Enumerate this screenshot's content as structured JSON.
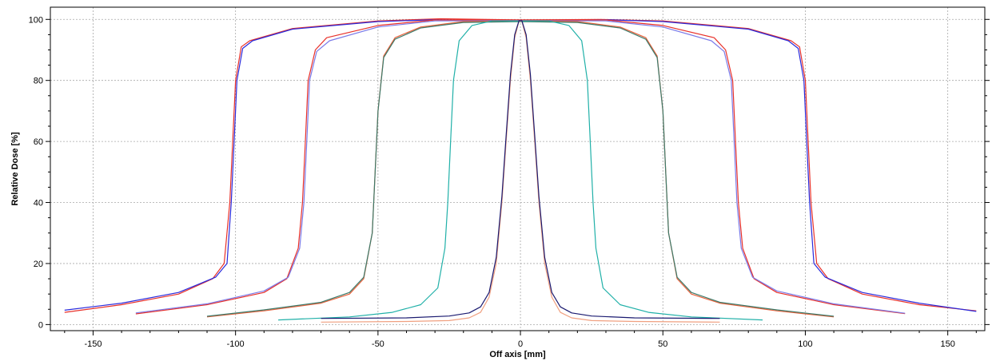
{
  "chart_data": {
    "type": "line",
    "title": "",
    "xlabel": "Off axis [mm]",
    "ylabel": "Relative Dose [%]",
    "xlim": [
      -165,
      163
    ],
    "ylim": [
      -2,
      104
    ],
    "xticks": [
      -150,
      -100,
      -50,
      0,
      50,
      100,
      150
    ],
    "yticks": [
      0,
      20,
      40,
      60,
      80,
      100
    ],
    "grid": true,
    "legend": "none",
    "series": [
      {
        "color": "#e8312a",
        "points": [
          [
            -160,
            4
          ],
          [
            -140,
            6.5
          ],
          [
            -120,
            10
          ],
          [
            -108,
            15
          ],
          [
            -104,
            20
          ],
          [
            -102,
            40
          ],
          [
            -101,
            60
          ],
          [
            -100,
            80
          ],
          [
            -98,
            91
          ],
          [
            -95,
            93
          ],
          [
            -80,
            97
          ],
          [
            -50,
            99.5
          ],
          [
            -28,
            100.2
          ],
          [
            0,
            99.8
          ],
          [
            28,
            100
          ],
          [
            50,
            99.5
          ],
          [
            80,
            97
          ],
          [
            95,
            93
          ],
          [
            98,
            91
          ],
          [
            100,
            80
          ],
          [
            101,
            60
          ],
          [
            102,
            40
          ],
          [
            104,
            20
          ],
          [
            108,
            15
          ],
          [
            120,
            10
          ],
          [
            140,
            6.5
          ],
          [
            160,
            4.5
          ]
        ]
      },
      {
        "color": "#2a2adb",
        "points": [
          [
            -160,
            4.7
          ],
          [
            -140,
            7
          ],
          [
            -120,
            10.5
          ],
          [
            -107,
            15.5
          ],
          [
            -103,
            20
          ],
          [
            -101.5,
            40
          ],
          [
            -100.5,
            60
          ],
          [
            -99.5,
            80
          ],
          [
            -97.5,
            90.5
          ],
          [
            -94,
            93
          ],
          [
            -80,
            96.8
          ],
          [
            -50,
            99.3
          ],
          [
            -30,
            99.9
          ],
          [
            0,
            99.5
          ],
          [
            30,
            99.9
          ],
          [
            50,
            99.3
          ],
          [
            80,
            96.8
          ],
          [
            94,
            93
          ],
          [
            97.5,
            90.5
          ],
          [
            99.5,
            80
          ],
          [
            100.5,
            60
          ],
          [
            101.5,
            40
          ],
          [
            103,
            20
          ],
          [
            107,
            15.5
          ],
          [
            120,
            10.5
          ],
          [
            140,
            7
          ],
          [
            160,
            4.3
          ]
        ]
      },
      {
        "color": "#e8312a",
        "points": [
          [
            -135,
            3.5
          ],
          [
            -110,
            6.5
          ],
          [
            -90,
            10.5
          ],
          [
            -82,
            15
          ],
          [
            -78,
            25
          ],
          [
            -76.5,
            40
          ],
          [
            -75.5,
            60
          ],
          [
            -74.5,
            80
          ],
          [
            -72,
            90
          ],
          [
            -68,
            94
          ],
          [
            -50,
            98
          ],
          [
            -30,
            99.8
          ],
          [
            0,
            99.8
          ],
          [
            30,
            99.8
          ],
          [
            50,
            98
          ],
          [
            68,
            94
          ],
          [
            72,
            90
          ],
          [
            74.5,
            80
          ],
          [
            75.5,
            60
          ],
          [
            76.5,
            40
          ],
          [
            78,
            25
          ],
          [
            82,
            15
          ],
          [
            90,
            10.5
          ],
          [
            110,
            6.5
          ],
          [
            135,
            3.6
          ]
        ]
      },
      {
        "color": "#7a7ae8",
        "points": [
          [
            -135,
            3.8
          ],
          [
            -110,
            6.8
          ],
          [
            -90,
            11
          ],
          [
            -81.5,
            15.5
          ],
          [
            -77.5,
            25
          ],
          [
            -76,
            40
          ],
          [
            -75,
            60
          ],
          [
            -74,
            80
          ],
          [
            -71.5,
            89.5
          ],
          [
            -67,
            93
          ],
          [
            -50,
            97.5
          ],
          [
            -30,
            99.5
          ],
          [
            0,
            99.6
          ],
          [
            30,
            99.5
          ],
          [
            50,
            97.5
          ],
          [
            67,
            93
          ],
          [
            71.5,
            89.5
          ],
          [
            74,
            80
          ],
          [
            75,
            60
          ],
          [
            76,
            40
          ],
          [
            77.5,
            25
          ],
          [
            81.5,
            15.5
          ],
          [
            90,
            11
          ],
          [
            110,
            6.8
          ],
          [
            135,
            3.7
          ]
        ]
      },
      {
        "color": "#e8603a",
        "points": [
          [
            -110,
            2.5
          ],
          [
            -90,
            4.5
          ],
          [
            -70,
            7
          ],
          [
            -60,
            10
          ],
          [
            -55,
            15
          ],
          [
            -52,
            30
          ],
          [
            -51,
            50
          ],
          [
            -50,
            70
          ],
          [
            -48,
            88
          ],
          [
            -44,
            94
          ],
          [
            -35,
            97.5
          ],
          [
            -20,
            99.3
          ],
          [
            0,
            99.5
          ],
          [
            20,
            99.3
          ],
          [
            35,
            97.5
          ],
          [
            44,
            94
          ],
          [
            48,
            88
          ],
          [
            50,
            70
          ],
          [
            51,
            50
          ],
          [
            52,
            30
          ],
          [
            55,
            15
          ],
          [
            60,
            10
          ],
          [
            70,
            7
          ],
          [
            90,
            4.5
          ],
          [
            110,
            2.5
          ]
        ]
      },
      {
        "color": "#3c7a6a",
        "points": [
          [
            -110,
            2.7
          ],
          [
            -90,
            4.8
          ],
          [
            -70,
            7.3
          ],
          [
            -60,
            10.5
          ],
          [
            -55,
            15.5
          ],
          [
            -52,
            30
          ],
          [
            -51,
            50
          ],
          [
            -50,
            70
          ],
          [
            -48,
            87.5
          ],
          [
            -44,
            93.5
          ],
          [
            -35,
            97.2
          ],
          [
            -20,
            99
          ],
          [
            0,
            99.3
          ],
          [
            20,
            99
          ],
          [
            35,
            97.2
          ],
          [
            44,
            93.5
          ],
          [
            48,
            87.5
          ],
          [
            50,
            70
          ],
          [
            51,
            50
          ],
          [
            52,
            30
          ],
          [
            55,
            15.5
          ],
          [
            60,
            10.5
          ],
          [
            70,
            7.3
          ],
          [
            90,
            4.8
          ],
          [
            110,
            2.7
          ]
        ]
      },
      {
        "color": "#20b0a8",
        "points": [
          [
            -85,
            1.5
          ],
          [
            -60,
            2.5
          ],
          [
            -45,
            4
          ],
          [
            -35,
            6.5
          ],
          [
            -29,
            12
          ],
          [
            -26.5,
            25
          ],
          [
            -25.5,
            40
          ],
          [
            -24.5,
            60
          ],
          [
            -23.5,
            80
          ],
          [
            -21.5,
            93
          ],
          [
            -17,
            98
          ],
          [
            -10,
            99.5
          ],
          [
            0,
            99.5
          ],
          [
            10,
            99.5
          ],
          [
            17,
            98
          ],
          [
            21.5,
            93
          ],
          [
            23.5,
            80
          ],
          [
            24.5,
            60
          ],
          [
            25.5,
            40
          ],
          [
            26.5,
            25
          ],
          [
            29,
            12
          ],
          [
            35,
            6.5
          ],
          [
            45,
            4
          ],
          [
            60,
            2.5
          ],
          [
            85,
            1.5
          ]
        ]
      },
      {
        "color": "#f0a080",
        "points": [
          [
            -70,
            0.8
          ],
          [
            -40,
            1
          ],
          [
            -25,
            1.3
          ],
          [
            -18,
            2.2
          ],
          [
            -14,
            4
          ],
          [
            -11,
            9
          ],
          [
            -8.5,
            20
          ],
          [
            -6.5,
            40
          ],
          [
            -5,
            60
          ],
          [
            -3.5,
            80
          ],
          [
            -2,
            94
          ],
          [
            -0.5,
            99.5
          ],
          [
            0.5,
            99.5
          ],
          [
            2,
            94
          ],
          [
            3.5,
            80
          ],
          [
            5,
            60
          ],
          [
            6.5,
            40
          ],
          [
            8.5,
            20
          ],
          [
            11,
            9
          ],
          [
            14,
            4
          ],
          [
            18,
            2.2
          ],
          [
            25,
            1.3
          ],
          [
            40,
            1
          ],
          [
            70,
            0.8
          ]
        ]
      },
      {
        "color": "#1a1a70",
        "points": [
          [
            -70,
            2
          ],
          [
            -40,
            2.2
          ],
          [
            -25,
            2.8
          ],
          [
            -18,
            3.8
          ],
          [
            -14,
            5.8
          ],
          [
            -11,
            10.5
          ],
          [
            -8.5,
            22
          ],
          [
            -6.5,
            42
          ],
          [
            -5,
            62
          ],
          [
            -3.5,
            82
          ],
          [
            -2,
            95
          ],
          [
            -0.5,
            99.6
          ],
          [
            0.5,
            99.6
          ],
          [
            2,
            95
          ],
          [
            3.5,
            82
          ],
          [
            5,
            62
          ],
          [
            6.5,
            42
          ],
          [
            8.5,
            22
          ],
          [
            11,
            10.5
          ],
          [
            14,
            5.8
          ],
          [
            18,
            3.8
          ],
          [
            25,
            2.8
          ],
          [
            40,
            2.2
          ],
          [
            70,
            2
          ]
        ]
      }
    ]
  }
}
